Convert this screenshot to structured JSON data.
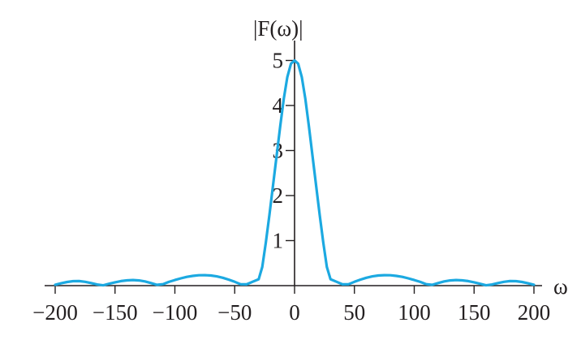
{
  "chart_data": {
    "type": "line",
    "title": "",
    "xlabel": "ω",
    "ylabel": "|F(ω)|",
    "xlim": [
      -200,
      200
    ],
    "ylim": [
      0,
      5.5
    ],
    "grid": false,
    "x_ticks": [
      -200,
      -150,
      -100,
      -50,
      0,
      50,
      100,
      150,
      200
    ],
    "x_tick_labels": [
      "−200",
      "−150",
      "−100",
      "−50",
      "0",
      "50",
      "100",
      "150",
      "200"
    ],
    "y_ticks": [
      1,
      2,
      3,
      4,
      5
    ],
    "y_tick_labels": [
      "1",
      "2",
      "3",
      "4",
      "5"
    ],
    "series": [
      {
        "color": "#1ca9e1",
        "x": [
          -200,
          -195,
          -190,
          -185,
          -180,
          -175,
          -170,
          -165,
          -160,
          -155,
          -150,
          -145,
          -140,
          -135,
          -130,
          -125,
          -120,
          -115,
          -110,
          -105,
          -100,
          -95,
          -90,
          -85,
          -80,
          -75,
          -70,
          -65,
          -60,
          -55,
          -50,
          -45,
          -40,
          -35,
          -30,
          -27,
          -24,
          -21,
          -18,
          -15,
          -12,
          -9,
          -6,
          -3,
          0,
          3,
          6,
          9,
          12,
          15,
          18,
          21,
          24,
          27,
          30,
          35,
          40,
          45,
          50,
          55,
          60,
          65,
          70,
          75,
          80,
          85,
          90,
          95,
          100,
          105,
          110,
          115,
          120,
          125,
          130,
          135,
          140,
          145,
          150,
          155,
          160,
          165,
          170,
          175,
          180,
          185,
          190,
          195,
          200
        ],
        "y": [
          0.02,
          0.052,
          0.081,
          0.099,
          0.1,
          0.084,
          0.058,
          0.026,
          0.007,
          0.041,
          0.073,
          0.1,
          0.118,
          0.124,
          0.116,
          0.093,
          0.058,
          0.018,
          0.032,
          0.082,
          0.125,
          0.163,
          0.194,
          0.217,
          0.23,
          0.233,
          0.225,
          0.205,
          0.174,
          0.133,
          0.084,
          0.03,
          0.028,
          0.087,
          0.142,
          0.414,
          0.956,
          1.565,
          2.216,
          2.882,
          3.535,
          4.146,
          4.632,
          4.929,
          5.0,
          4.929,
          4.632,
          4.146,
          3.535,
          2.882,
          2.216,
          1.565,
          0.956,
          0.414,
          0.142,
          0.087,
          0.028,
          0.03,
          0.084,
          0.133,
          0.174,
          0.205,
          0.225,
          0.233,
          0.23,
          0.217,
          0.194,
          0.163,
          0.125,
          0.082,
          0.032,
          0.018,
          0.058,
          0.093,
          0.116,
          0.124,
          0.118,
          0.1,
          0.073,
          0.041,
          0.007,
          0.026,
          0.058,
          0.084,
          0.1,
          0.099,
          0.081,
          0.052,
          0.02
        ]
      }
    ]
  }
}
